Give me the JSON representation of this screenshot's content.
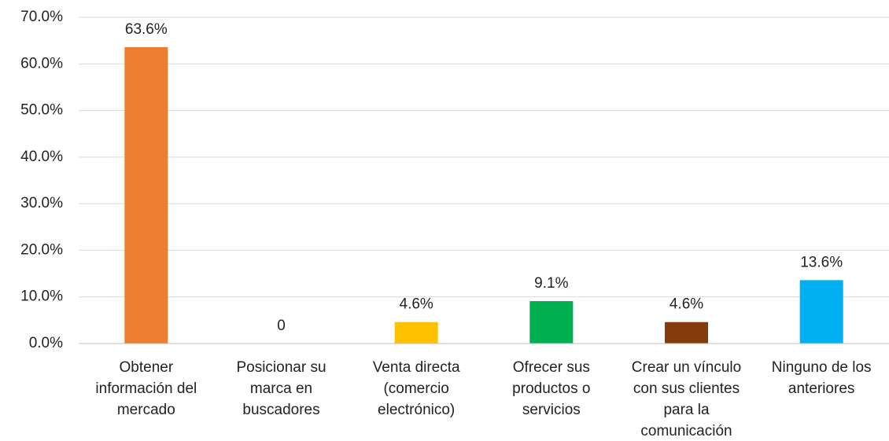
{
  "chart_data": {
    "type": "bar",
    "categories": [
      "Obtener información del mercado",
      "Posicionar su marca en buscadores",
      "Venta directa (comercio electrónico)",
      "Ofrecer sus productos o servicios",
      "Crear un vínculo con sus clientes para la comunicación",
      "Ninguno de los anteriores"
    ],
    "values": [
      63.6,
      0,
      4.6,
      9.1,
      4.6,
      13.6
    ],
    "value_labels": [
      "63.6%",
      "0",
      "4.6%",
      "9.1%",
      "4.6%",
      "13.6%"
    ],
    "colors": [
      "#ed7d31",
      "#a5a5a5",
      "#ffc000",
      "#00b050",
      "#843c0c",
      "#00b0f0"
    ],
    "ylim": [
      0,
      70
    ],
    "yticks": [
      {
        "value": 0,
        "label": "0.0%"
      },
      {
        "value": 10,
        "label": "10.0%"
      },
      {
        "value": 20,
        "label": "20.0%"
      },
      {
        "value": 30,
        "label": "30.0%"
      },
      {
        "value": 40,
        "label": "40.0%"
      },
      {
        "value": 50,
        "label": "50.0%"
      },
      {
        "value": 60,
        "label": "60.0%"
      },
      {
        "value": 70,
        "label": "70.0%"
      }
    ],
    "grid": true
  }
}
